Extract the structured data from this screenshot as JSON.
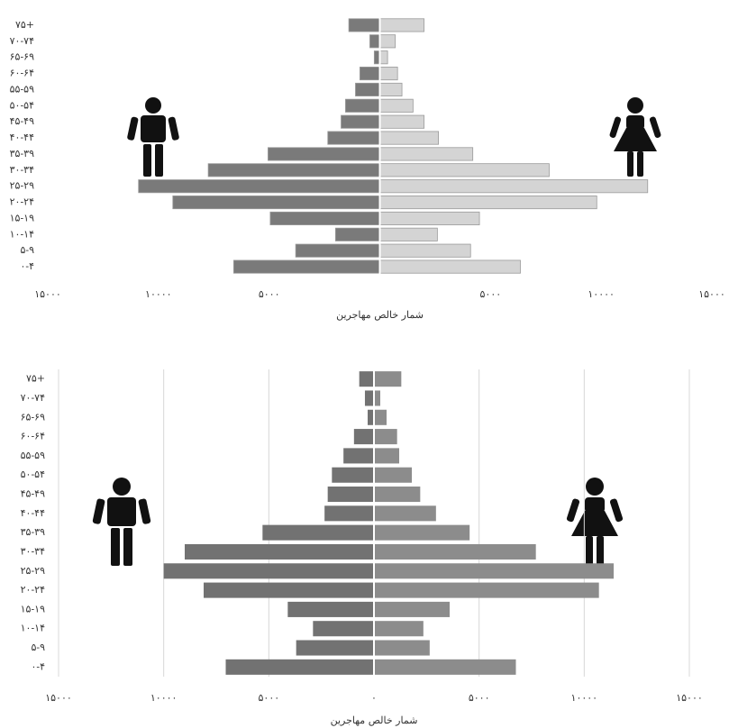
{
  "chart_data": [
    {
      "type": "pyramid",
      "categories": [
        "۰-۴",
        "۵-۹",
        "۱۰-۱۴",
        "۱۵-۱۹",
        "۲۰-۲۴",
        "۲۵-۲۹",
        "۳۰-۳۴",
        "۳۵-۳۹",
        "۴۰-۴۴",
        "۴۵-۴۹",
        "۵۰-۵۴",
        "۵۵-۵۹",
        "۶۰-۶۴",
        "۶۵-۶۹",
        "۷۰-۷۴",
        "۷۵+"
      ],
      "series": [
        {
          "color": "#7a7a7a",
          "values": [
            -6600,
            -3800,
            -2000,
            -4950,
            -9350,
            -10900,
            -7750,
            -5050,
            -2350,
            -1750,
            -1550,
            -1100,
            -900,
            -250,
            -450,
            -1400
          ]
        },
        {
          "color": "#d4d4d4",
          "values": [
            6350,
            4100,
            2600,
            4500,
            9800,
            12100,
            7650,
            4200,
            2650,
            2000,
            1500,
            1000,
            800,
            350,
            700,
            2000
          ]
        }
      ],
      "xlim": [
        -15000,
        15000
      ],
      "xticks": [
        {
          "value": -15000,
          "label": "۱۵۰۰۰"
        },
        {
          "value": -10000,
          "label": "۱۰۰۰۰"
        },
        {
          "value": -5000,
          "label": "۵۰۰۰"
        },
        {
          "value": 5000,
          "label": "۵۰۰۰"
        },
        {
          "value": 10000,
          "label": "۱۰۰۰۰"
        },
        {
          "value": 15000,
          "label": "۱۵۰۰۰"
        }
      ],
      "x_label": "شمار خالص مهاجرین",
      "grid": false
    },
    {
      "type": "pyramid",
      "categories": [
        "۰-۴",
        "۵-۹",
        "۱۰-۱۴",
        "۱۵-۱۹",
        "۲۰-۲۴",
        "۲۵-۲۹",
        "۳۰-۳۴",
        "۳۵-۳۹",
        "۴۰-۴۴",
        "۴۵-۴۹",
        "۵۰-۵۴",
        "۵۵-۵۹",
        "۶۰-۶۴",
        "۶۵-۶۹",
        "۷۰-۷۴",
        "۷۵+"
      ],
      "series": [
        {
          "color": "#727272",
          "values": [
            -7050,
            -3700,
            -2900,
            -4100,
            -8100,
            -10000,
            -9000,
            -5300,
            -2350,
            -2200,
            -2000,
            -1450,
            -950,
            -300,
            -430,
            -700
          ]
        },
        {
          "color": "#8c8c8c",
          "values": [
            6750,
            2650,
            2350,
            3600,
            10700,
            11400,
            7700,
            4550,
            2950,
            2200,
            1800,
            1200,
            1100,
            600,
            300,
            1300
          ]
        }
      ],
      "xlim": [
        -15000,
        15000
      ],
      "xticks": [
        {
          "value": -15000,
          "label": "۱۵۰۰۰"
        },
        {
          "value": -10000,
          "label": "۱۰۰۰۰"
        },
        {
          "value": -5000,
          "label": "۵۰۰۰"
        },
        {
          "value": 0,
          "label": "۰"
        },
        {
          "value": 5000,
          "label": "۵۰۰۰"
        },
        {
          "value": 10000,
          "label": "۱۰۰۰۰"
        },
        {
          "value": 15000,
          "label": "۱۵۰۰۰"
        }
      ],
      "x_label": "شمار خالص مهاجرین",
      "grid": true
    }
  ]
}
